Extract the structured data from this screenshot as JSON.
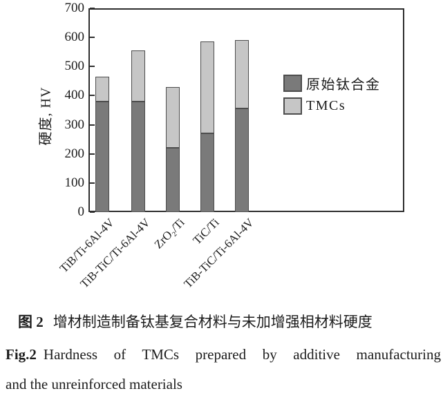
{
  "chart_data": {
    "type": "bar",
    "stacked": true,
    "categories": [
      "TiB/Ti-6Al-4V",
      "TiB-TiC/Ti-6Al-4V",
      "ZrO₂/Ti",
      "TiC/Ti",
      "TiB-TiC/Ti-6Al-4V"
    ],
    "series": [
      {
        "name": "原始钛合金",
        "values": [
          380,
          380,
          220,
          270,
          355
        ],
        "color": "#7a7a7a"
      },
      {
        "name": "TMCs",
        "values": [
          85,
          175,
          210,
          315,
          235
        ],
        "color": "#c6c6c6"
      }
    ],
    "stack_totals": [
      465,
      555,
      430,
      585,
      590
    ],
    "xlabel": "",
    "ylabel": "硬度, HV",
    "ylim": [
      0,
      700
    ],
    "yticks": [
      0,
      100,
      200,
      300,
      400,
      500,
      600,
      700
    ],
    "grid": false,
    "legend_position": "inside-right",
    "bar_border_color": "#4c4c4c",
    "frame_color": "#2d2d2d",
    "text_color": "#1c1c1c"
  },
  "caption": {
    "zh_label": "图 2",
    "zh_text": "增材制造制备钛基复合材料与未加增强相材料硬度",
    "en_label": "Fig.2",
    "en_text": "Hardness of TMCs prepared by additive manufacturing",
    "en_text_line2": "and the unreinforced materials"
  }
}
